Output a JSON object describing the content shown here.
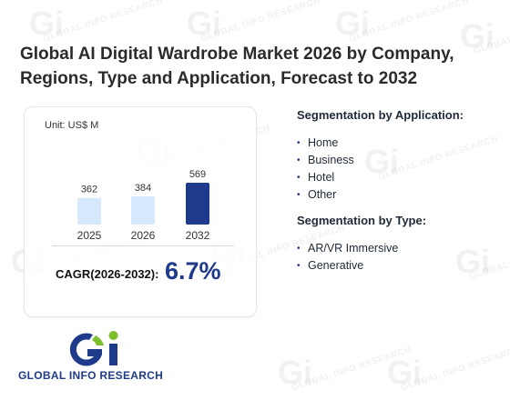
{
  "title": "Global AI Digital Wardrobe Market 2026 by Company, Regions, Type and Application, Forecast to 2032",
  "unit_label": "Unit: US$ M",
  "cagr": {
    "label": "CAGR(2026-2032):",
    "value": "6.7%"
  },
  "chart_data": {
    "type": "bar",
    "categories": [
      "2025",
      "2026",
      "2032"
    ],
    "values": [
      362,
      384,
      569
    ],
    "title": "",
    "xlabel": "",
    "ylabel": "",
    "ylim": [
      0,
      569
    ],
    "grid": false,
    "colors": [
      "#d6e8fb",
      "#d6e8fb",
      "#1e3a8a"
    ]
  },
  "segmentation_application": {
    "title": "Segmentation by Application:",
    "items": [
      "Home",
      "Business",
      "Hotel",
      "Other"
    ]
  },
  "segmentation_type": {
    "title": "Segmentation by Type:",
    "items": [
      "AR/VR Immersive",
      "Generative"
    ]
  },
  "logo": {
    "text": "GLOBAL INFO RESEARCH",
    "colors": {
      "primary": "#1e3a8a",
      "accent": "#7bbf2a"
    }
  },
  "watermark": {
    "text": "GLOBAL INFO RESEARCH"
  }
}
